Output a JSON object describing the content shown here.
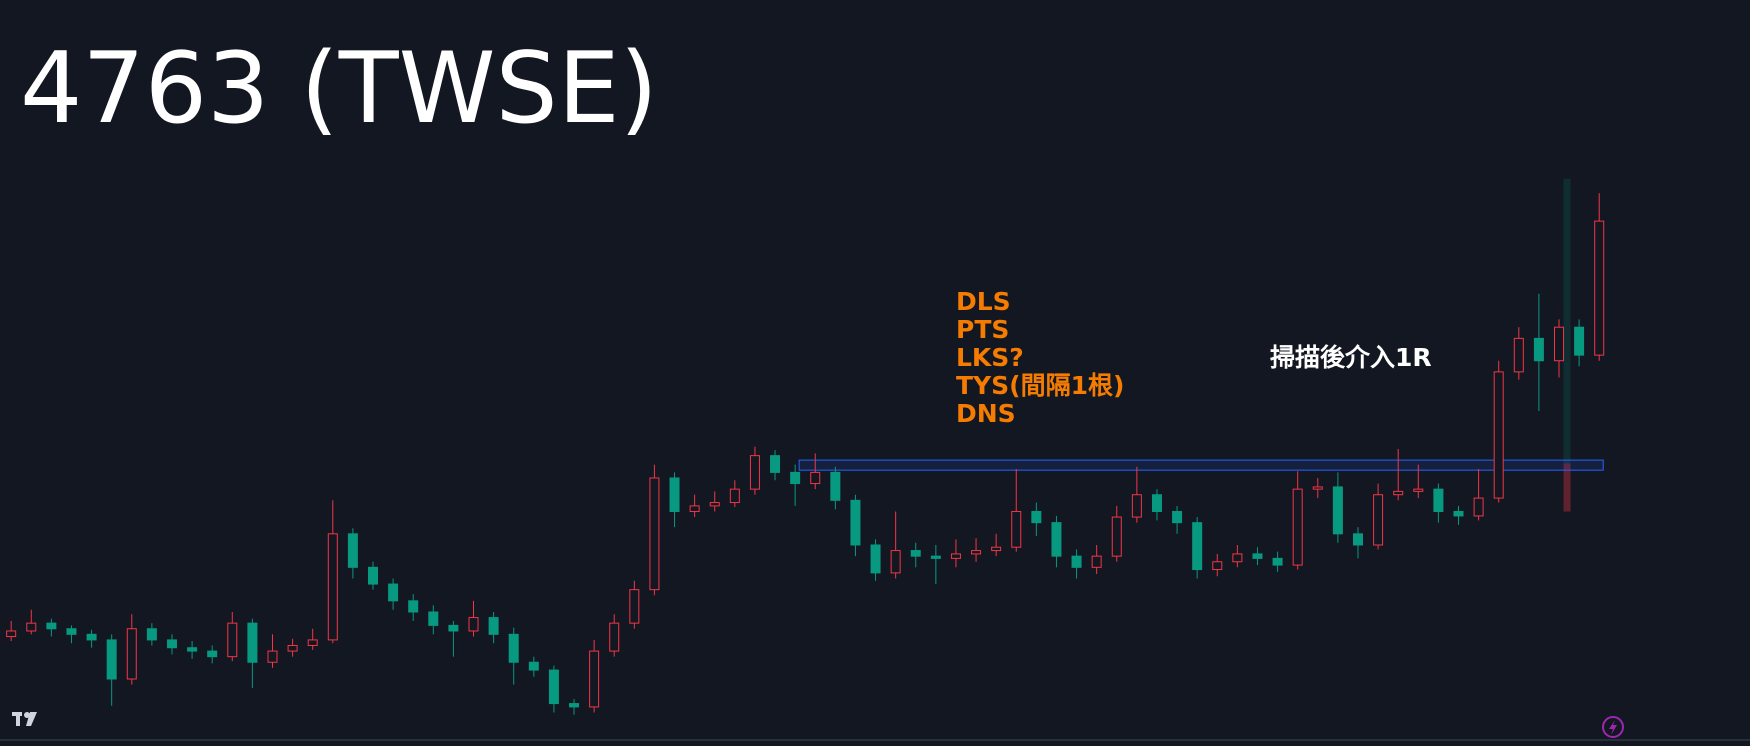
{
  "chart_data": {
    "type": "candlestick",
    "title": "4763 (TWSE)",
    "annotations": [
      "DLS",
      "PTS",
      "LKS?",
      "TYS(間隔1根)",
      "DNS"
    ],
    "note": "掃描後介入1R",
    "up_color": "#f23645",
    "down_color": "#089981",
    "ylim": [
      0,
      668
    ],
    "open": [
      98,
      103,
      110,
      105,
      100,
      95,
      60,
      105,
      95,
      88,
      85,
      80,
      110,
      75,
      85,
      90,
      95,
      190,
      160,
      145,
      130,
      120,
      108,
      103,
      115,
      100,
      75,
      68,
      38,
      35,
      85,
      110,
      140,
      240,
      210,
      215,
      218,
      230,
      260,
      245,
      235,
      245,
      220,
      180,
      155,
      175,
      170,
      168,
      172,
      175,
      178,
      210,
      200,
      170,
      160,
      170,
      205,
      225,
      210,
      200,
      158,
      165,
      172,
      168,
      162,
      230,
      232,
      190,
      180,
      225,
      228,
      230,
      210,
      206,
      222,
      335,
      365,
      345,
      375,
      350
    ],
    "high": [
      112,
      122,
      114,
      108,
      104,
      100,
      118,
      110,
      100,
      94,
      90,
      120,
      114,
      100,
      96,
      105,
      220,
      195,
      165,
      150,
      136,
      126,
      112,
      130,
      120,
      106,
      80,
      72,
      42,
      95,
      118,
      148,
      252,
      245,
      225,
      228,
      238,
      268,
      265,
      252,
      262,
      250,
      225,
      185,
      210,
      182,
      180,
      185,
      186,
      190,
      248,
      218,
      206,
      176,
      180,
      215,
      250,
      230,
      215,
      205,
      172,
      180,
      178,
      174,
      246,
      240,
      245,
      196,
      235,
      266,
      252,
      235,
      215,
      248,
      345,
      375,
      405,
      382,
      382,
      495
    ],
    "low": [
      94,
      100,
      98,
      92,
      88,
      36,
      55,
      90,
      82,
      78,
      74,
      76,
      52,
      70,
      80,
      86,
      92,
      150,
      140,
      122,
      112,
      100,
      80,
      98,
      92,
      55,
      62,
      30,
      28,
      30,
      80,
      105,
      135,
      196,
      205,
      210,
      214,
      225,
      238,
      215,
      230,
      212,
      170,
      148,
      150,
      160,
      145,
      160,
      165,
      170,
      174,
      188,
      160,
      150,
      154,
      165,
      200,
      202,
      190,
      150,
      152,
      160,
      162,
      156,
      158,
      222,
      182,
      168,
      176,
      220,
      222,
      200,
      198,
      202,
      218,
      328,
      300,
      330,
      340,
      345
    ],
    "close": [
      103,
      110,
      105,
      100,
      95,
      60,
      105,
      95,
      88,
      85,
      80,
      110,
      75,
      85,
      90,
      95,
      190,
      160,
      145,
      130,
      120,
      108,
      103,
      115,
      100,
      75,
      68,
      38,
      35,
      85,
      110,
      140,
      240,
      210,
      215,
      218,
      230,
      260,
      245,
      235,
      245,
      220,
      180,
      155,
      175,
      170,
      168,
      172,
      175,
      178,
      210,
      200,
      170,
      160,
      170,
      205,
      225,
      210,
      200,
      158,
      165,
      172,
      168,
      162,
      230,
      232,
      190,
      180,
      225,
      228,
      230,
      210,
      206,
      222,
      335,
      365,
      345,
      375,
      350,
      470
    ],
    "zone": {
      "from": 39.2,
      "to": 79.2,
      "low": 247,
      "high": 256,
      "color": "#2962ff"
    },
    "position": {
      "index": 77.4,
      "target": 508,
      "entry": 253,
      "stop": 210
    }
  }
}
